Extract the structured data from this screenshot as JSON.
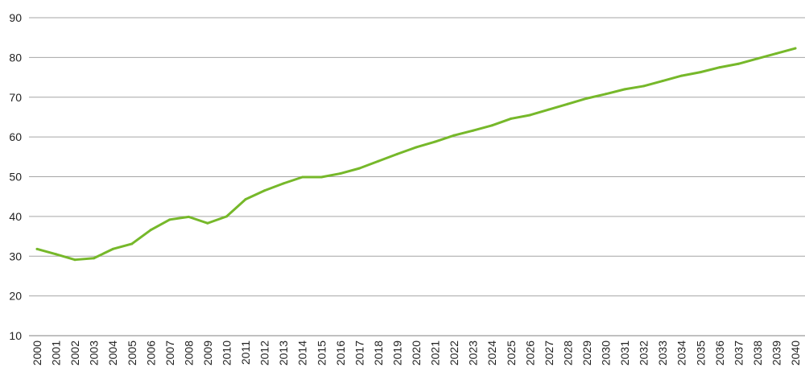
{
  "chart_data": {
    "type": "line",
    "title": "",
    "xlabel": "",
    "ylabel": "",
    "x": [
      "2000",
      "2001",
      "2002",
      "2003",
      "2004",
      "2005",
      "2006",
      "2007",
      "2008",
      "2009",
      "2010",
      "2011",
      "2012",
      "2013",
      "2014",
      "2015",
      "2016",
      "2017",
      "2018",
      "2019",
      "2020",
      "2021",
      "2022",
      "2023",
      "2024",
      "2025",
      "2026",
      "2027",
      "2028",
      "2029",
      "2030",
      "2031",
      "2032",
      "2033",
      "2034",
      "2035",
      "2036",
      "2037",
      "2038",
      "2039",
      "2040"
    ],
    "series": [
      {
        "values": [
          31.8,
          30.5,
          29.1,
          29.5,
          31.8,
          33.1,
          36.6,
          39.2,
          39.9,
          38.3,
          40.0,
          44.3,
          46.5,
          48.3,
          49.9,
          49.9,
          50.8,
          52.1,
          53.9,
          55.7,
          57.4,
          58.8,
          60.4,
          61.6,
          62.9,
          64.6,
          65.5,
          66.9,
          68.3,
          69.7,
          70.8,
          72.0,
          72.8,
          74.1,
          75.4,
          76.3,
          77.5,
          78.4,
          79.7,
          81.0,
          82.3
        ],
        "color": "#76b82a"
      }
    ],
    "yticks": [
      10,
      20,
      30,
      40,
      50,
      60,
      70,
      80,
      90
    ],
    "ylim": [
      10,
      90
    ],
    "grid": true,
    "legend": "none"
  }
}
